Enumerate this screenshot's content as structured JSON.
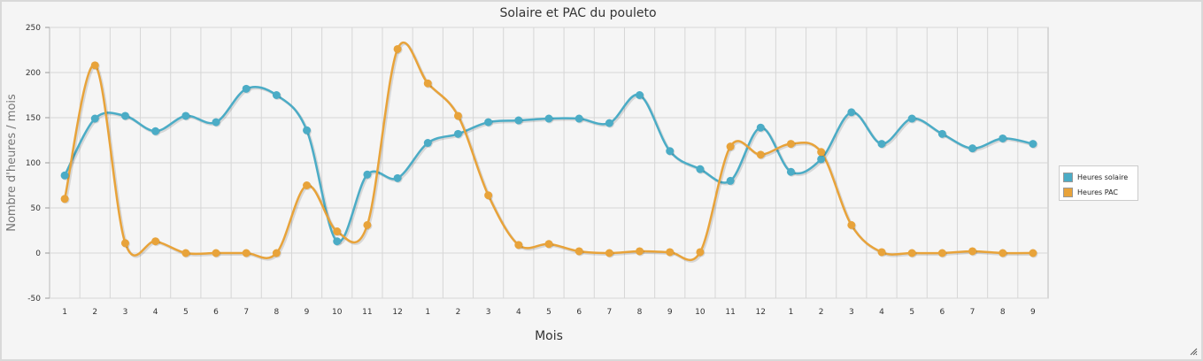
{
  "chart_data": {
    "type": "line",
    "title": "Solaire et PAC du pouleto",
    "xlabel": "Mois",
    "ylabel": "Nombre d'heures / mois",
    "ylim": [
      -50,
      250
    ],
    "yticks": [
      "-50",
      "0",
      "50",
      "100",
      "150",
      "200",
      "250"
    ],
    "categories": [
      "1",
      "2",
      "3",
      "4",
      "5",
      "6",
      "7",
      "8",
      "9",
      "10",
      "11",
      "12",
      "1",
      "2",
      "3",
      "4",
      "5",
      "6",
      "7",
      "8",
      "9",
      "10",
      "11",
      "12",
      "1",
      "2",
      "3",
      "4",
      "5",
      "6",
      "7",
      "8",
      "9"
    ],
    "grid": true,
    "legend_position": "right",
    "series": [
      {
        "name": "Heures solaire",
        "color": "#4bacc6",
        "values": [
          86,
          149,
          152,
          135,
          152,
          145,
          182,
          175,
          136,
          13,
          87,
          83,
          122,
          132,
          145,
          147,
          149,
          149,
          144,
          175,
          113,
          93,
          80,
          139,
          90,
          104,
          156,
          121,
          149,
          132,
          116,
          127,
          121
        ]
      },
      {
        "name": "Heures PAC",
        "color": "#e8a33a",
        "values": [
          60,
          208,
          11,
          13,
          0,
          0,
          0,
          0,
          75,
          24,
          31,
          226,
          188,
          152,
          64,
          9,
          10,
          2,
          0,
          2,
          1,
          1,
          118,
          109,
          121,
          112,
          31,
          1,
          0,
          0,
          2,
          0,
          0
        ]
      }
    ]
  }
}
